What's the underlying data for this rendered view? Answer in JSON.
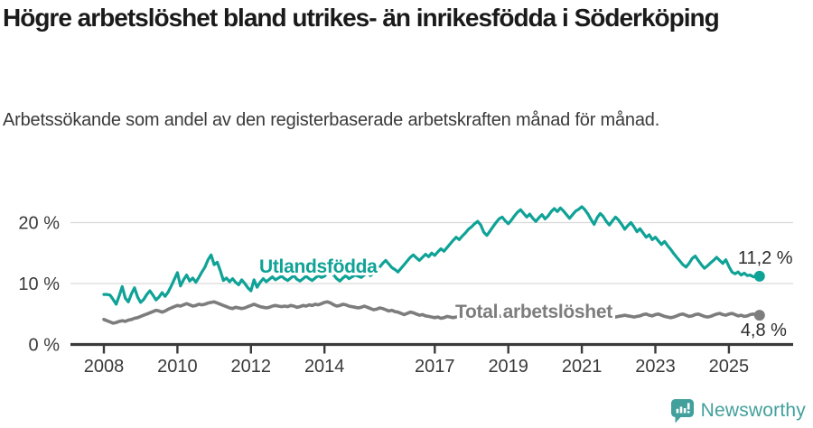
{
  "header": {
    "title": "Högre arbetslöshet bland utrikes- än inrikesfödda i Söderköping",
    "subtitle": "Arbetssökande som andel av den registerbaserade arbetskraften månad för månad."
  },
  "chart_data": {
    "type": "line",
    "title": "Högre arbetslöshet bland utrikes- än inrikesfödda i Söderköping",
    "xlabel": "",
    "ylabel": "",
    "x_unit": "month",
    "x_start": "2008-01",
    "x_end": "2025-11",
    "x_tick_labels": [
      "2008",
      "2010",
      "2012",
      "2014",
      "2017",
      "2019",
      "2021",
      "2023",
      "2025"
    ],
    "y_tick_values": [
      0,
      10,
      20
    ],
    "y_tick_labels": [
      "0 %",
      "10 %",
      "20 %"
    ],
    "ylim": [
      0,
      24
    ],
    "grid": "horizontal-only",
    "legend": "inline-labels-on-lines",
    "series": [
      {
        "name": "Utlandsfödda",
        "color": "#0fa296",
        "last_value_label": "11,2 %",
        "values": [
          8.2,
          8.2,
          8.1,
          7.4,
          6.6,
          8.0,
          9.5,
          7.6,
          7.0,
          8.3,
          9.3,
          7.8,
          6.9,
          7.4,
          8.2,
          8.8,
          8.1,
          7.3,
          7.8,
          8.5,
          7.9,
          8.6,
          9.6,
          10.7,
          11.8,
          9.6,
          10.6,
          11.4,
          10.4,
          10.9,
          10.2,
          11.0,
          11.9,
          12.7,
          13.9,
          14.7,
          13.1,
          13.5,
          12.1,
          10.5,
          10.9,
          10.3,
          10.8,
          10.2,
          9.8,
          10.6,
          10.0,
          9.3,
          8.8,
          10.6,
          9.4,
          10.2,
          10.8,
          10.3,
          10.7,
          11.1,
          10.6,
          10.9,
          11.2,
          10.8,
          10.5,
          10.9,
          11.3,
          10.7,
          10.4,
          10.8,
          11.2,
          10.8,
          10.5,
          10.9,
          11.3,
          11.0,
          11.2,
          11.7,
          12.1,
          11.4,
          10.8,
          10.4,
          10.9,
          11.3,
          10.8,
          11.1,
          11.4,
          11.2,
          11.0,
          11.4,
          11.8,
          11.3,
          11.7,
          12.2,
          12.7,
          13.3,
          13.8,
          13.2,
          12.6,
          12.3,
          11.9,
          12.5,
          13.1,
          13.7,
          14.3,
          14.7,
          14.2,
          13.8,
          14.3,
          14.8,
          14.4,
          15.0,
          14.6,
          15.2,
          15.7,
          15.3,
          15.9,
          16.5,
          17.1,
          17.6,
          17.2,
          17.8,
          18.3,
          18.9,
          19.3,
          19.8,
          20.2,
          19.6,
          18.4,
          17.9,
          18.6,
          19.3,
          20.0,
          20.6,
          20.9,
          20.3,
          19.8,
          20.4,
          21.1,
          21.7,
          22.1,
          21.5,
          20.9,
          21.4,
          20.7,
          20.2,
          20.8,
          21.3,
          20.6,
          21.1,
          21.8,
          22.3,
          21.8,
          22.4,
          21.9,
          21.3,
          20.7,
          21.3,
          21.9,
          22.2,
          22.6,
          22.1,
          21.4,
          20.5,
          19.7,
          20.8,
          21.5,
          21.0,
          20.2,
          19.6,
          20.3,
          20.9,
          20.4,
          19.7,
          18.9,
          19.5,
          20.0,
          19.3,
          18.5,
          19.0,
          18.3,
          17.6,
          18.0,
          17.2,
          17.6,
          17.0,
          16.4,
          16.9,
          16.2,
          15.6,
          14.9,
          14.3,
          13.7,
          13.1,
          12.7,
          13.3,
          14.1,
          14.5,
          13.8,
          13.1,
          12.5,
          12.9,
          13.4,
          13.8,
          14.3,
          13.8,
          13.3,
          13.9,
          12.8,
          11.9,
          11.6,
          11.9,
          11.4,
          11.7,
          11.3,
          11.4,
          11.1,
          11.3,
          11.2
        ]
      },
      {
        "name": "Total arbetslöshet",
        "color": "#7d7d7d",
        "last_value_label": "4,8 %",
        "values": [
          4.1,
          3.9,
          3.7,
          3.5,
          3.6,
          3.8,
          3.9,
          3.8,
          4.0,
          4.1,
          4.3,
          4.4,
          4.6,
          4.8,
          5.0,
          5.2,
          5.4,
          5.6,
          5.5,
          5.3,
          5.5,
          5.8,
          6.0,
          6.2,
          6.4,
          6.3,
          6.5,
          6.7,
          6.5,
          6.3,
          6.4,
          6.6,
          6.5,
          6.6,
          6.8,
          6.9,
          7.0,
          6.8,
          6.6,
          6.4,
          6.2,
          6.0,
          5.9,
          6.1,
          6.0,
          5.9,
          6.0,
          6.2,
          6.4,
          6.6,
          6.4,
          6.2,
          6.1,
          6.0,
          6.1,
          6.3,
          6.4,
          6.3,
          6.2,
          6.3,
          6.2,
          6.4,
          6.3,
          6.1,
          6.2,
          6.4,
          6.3,
          6.5,
          6.4,
          6.6,
          6.5,
          6.7,
          6.9,
          7.0,
          6.8,
          6.5,
          6.3,
          6.4,
          6.6,
          6.5,
          6.3,
          6.2,
          6.1,
          6.0,
          6.1,
          6.3,
          6.1,
          5.9,
          5.7,
          5.8,
          6.0,
          5.9,
          5.7,
          5.5,
          5.6,
          5.4,
          5.3,
          5.1,
          4.9,
          5.1,
          5.3,
          5.2,
          5.0,
          4.8,
          4.9,
          4.7,
          4.6,
          4.5,
          4.4,
          4.5,
          4.3,
          4.4,
          4.6,
          4.5,
          4.4,
          4.5,
          4.6,
          4.5,
          4.4,
          4.5,
          4.6,
          4.7,
          4.5,
          4.4,
          4.5,
          4.6,
          4.5,
          4.4,
          4.5,
          4.6,
          4.7,
          4.6,
          4.7,
          4.8,
          4.6,
          4.5,
          4.4,
          4.5,
          4.6,
          4.7,
          4.8,
          4.7,
          4.8,
          4.9,
          5.0,
          5.2,
          5.5,
          5.8,
          6.0,
          5.9,
          5.8,
          5.7,
          5.6,
          5.5,
          5.4,
          5.3,
          5.2,
          5.1,
          5.0,
          4.9,
          4.8,
          4.7,
          4.8,
          4.7,
          4.6,
          4.7,
          4.6,
          4.5,
          4.6,
          4.7,
          4.8,
          4.7,
          4.6,
          4.5,
          4.6,
          4.7,
          4.9,
          5.0,
          4.8,
          4.7,
          4.9,
          5.0,
          4.8,
          4.6,
          4.5,
          4.4,
          4.5,
          4.7,
          4.9,
          5.0,
          4.8,
          4.6,
          4.7,
          4.9,
          5.0,
          4.8,
          4.6,
          4.5,
          4.6,
          4.8,
          5.0,
          5.1,
          4.9,
          4.8,
          5.0,
          5.1,
          4.9,
          4.7,
          4.8,
          4.6,
          4.7,
          4.9,
          5.0,
          4.9,
          4.8
        ]
      }
    ]
  },
  "footer": {
    "brand": "Newsworthy",
    "brand_color": "#41a09b",
    "logo_icon": "speech-bubble-bar-chart-icon"
  },
  "colors": {
    "background": "#ffffff",
    "title": "#1a1a1a",
    "subtitle": "#3a3a3a",
    "axis": "#3a3a3a",
    "grid": "#d9d9d9",
    "value_label": "#2b2b2b"
  }
}
